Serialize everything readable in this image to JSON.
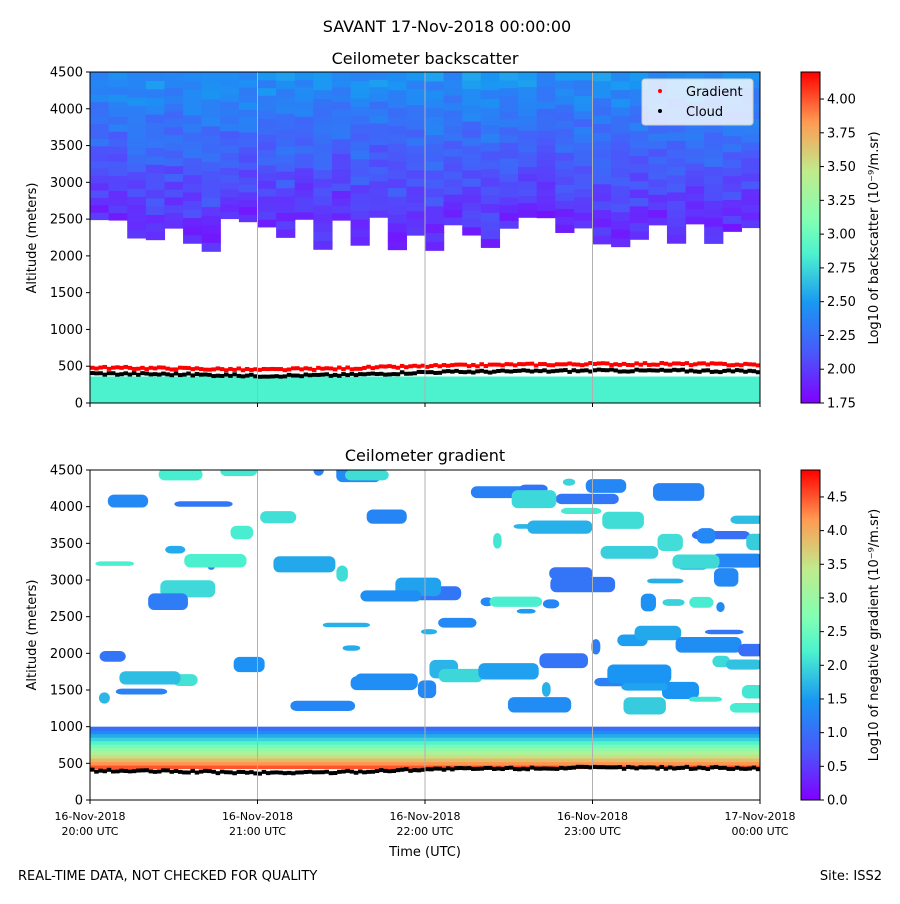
{
  "suptitle": "SAVANT 17-Nov-2018 00:00:00",
  "footer": {
    "left": "REAL-TIME DATA, NOT CHECKED FOR QUALITY",
    "right": "Site: ISS2"
  },
  "xaxis": {
    "label": "Time (UTC)",
    "tick_line1": [
      "16-Nov-2018",
      "16-Nov-2018",
      "16-Nov-2018",
      "16-Nov-2018",
      "17-Nov-2018"
    ],
    "tick_line2": [
      "20:00 UTC",
      "21:00 UTC",
      "22:00 UTC",
      "23:00 UTC",
      "00:00 UTC"
    ]
  },
  "colors": {
    "gradient_marker": "#ff0000",
    "cloud_marker": "#000000",
    "grid": "#b0b0b0"
  },
  "chart_data": [
    {
      "type": "heatmap",
      "title": "Ceilometer backscatter",
      "xlabel": "",
      "ylabel": "Altitude (meters)",
      "x_range_hours": [
        20,
        24
      ],
      "ylim": [
        0,
        4500
      ],
      "yticks": [
        0,
        500,
        1000,
        1500,
        2000,
        2500,
        3000,
        3500,
        4000,
        4500
      ],
      "colorbar": {
        "label": "Log10 of backscatter (10⁻⁹/m.sr)",
        "range": [
          1.75,
          4.2
        ],
        "ticks": [
          "1.75",
          "2.00",
          "2.25",
          "2.50",
          "2.75",
          "3.00",
          "3.25",
          "3.50",
          "3.75",
          "4.00"
        ],
        "tick_values": [
          1.75,
          2.0,
          2.25,
          2.5,
          2.75,
          3.0,
          3.25,
          3.5,
          3.75,
          4.0
        ]
      },
      "legend": {
        "position": "top-right",
        "entries": [
          {
            "label": "Gradient",
            "color": "#ff0000"
          },
          {
            "label": "Cloud",
            "color": "#000000"
          }
        ]
      },
      "layers": {
        "surface_layer_top_m": 360,
        "surface_layer_value": 2.85,
        "cloud_base_band_m": [
          2050,
          2550
        ],
        "upper_layer_value_range": [
          1.8,
          2.6
        ]
      },
      "series": [
        {
          "name": "Gradient",
          "x_hours": [
            20.0,
            20.5,
            21.0,
            21.5,
            22.0,
            22.5,
            23.0,
            23.5,
            24.0
          ],
          "altitude_m": [
            480,
            470,
            450,
            470,
            500,
            520,
            530,
            530,
            520
          ]
        },
        {
          "name": "Cloud",
          "x_hours": [
            20.0,
            20.5,
            21.0,
            21.5,
            22.0,
            22.5,
            23.0,
            23.5,
            24.0
          ],
          "altitude_m": [
            400,
            390,
            370,
            380,
            420,
            430,
            440,
            440,
            430
          ]
        }
      ]
    },
    {
      "type": "heatmap",
      "title": "Ceilometer gradient",
      "xlabel": "Time (UTC)",
      "ylabel": "Altitude (meters)",
      "x_range_hours": [
        20,
        24
      ],
      "ylim": [
        0,
        4500
      ],
      "yticks": [
        0,
        500,
        1000,
        1500,
        2000,
        2500,
        3000,
        3500,
        4000,
        4500
      ],
      "colorbar": {
        "label": "Log10 of negative gradient (10⁻⁹/m.sr)",
        "range": [
          0.0,
          4.9
        ],
        "ticks": [
          "0.0",
          "0.5",
          "1.0",
          "1.5",
          "2.0",
          "2.5",
          "3.0",
          "3.5",
          "4.0",
          "4.5"
        ],
        "tick_values": [
          0.0,
          0.5,
          1.0,
          1.5,
          2.0,
          2.5,
          3.0,
          3.5,
          4.0,
          4.5
        ]
      },
      "layers": {
        "boundary_layer_band_m": [
          430,
          1000
        ],
        "boundary_peak_value": 4.5,
        "patch_value_range": [
          1.0,
          2.2
        ]
      },
      "series": [
        {
          "name": "Cloud",
          "x_hours": [
            20.0,
            20.5,
            21.0,
            21.5,
            22.0,
            22.5,
            23.0,
            23.5,
            24.0
          ],
          "altitude_m": [
            400,
            390,
            370,
            380,
            420,
            430,
            440,
            440,
            430
          ]
        }
      ]
    }
  ]
}
